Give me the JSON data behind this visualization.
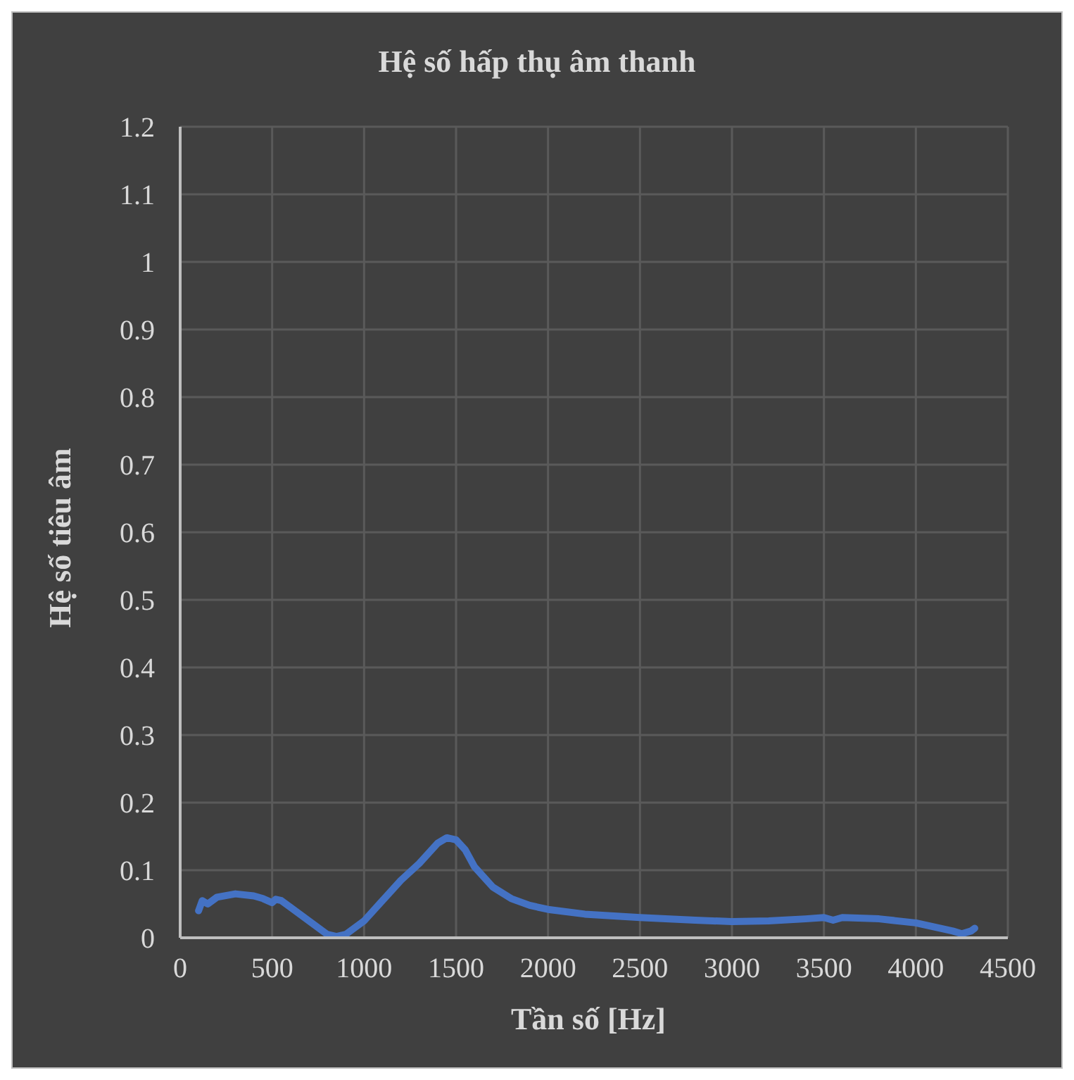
{
  "chart_data": {
    "type": "line",
    "title": "Hệ số hấp thụ âm thanh",
    "xlabel": "Tần số [Hz]",
    "ylabel": "Hệ số tiêu âm",
    "x": [
      100,
      120,
      150,
      200,
      300,
      400,
      450,
      500,
      520,
      550,
      600,
      700,
      800,
      850,
      900,
      1000,
      1100,
      1200,
      1300,
      1400,
      1450,
      1500,
      1550,
      1600,
      1700,
      1800,
      1900,
      2000,
      2200,
      2500,
      2800,
      3000,
      3200,
      3400,
      3500,
      3550,
      3600,
      3800,
      4000,
      4100,
      4200,
      4250,
      4300,
      4320
    ],
    "series": [
      {
        "color": "#4472c4",
        "values": [
          0.04,
          0.055,
          0.05,
          0.06,
          0.065,
          0.062,
          0.058,
          0.052,
          0.057,
          0.055,
          0.045,
          0.025,
          0.005,
          0.002,
          0.005,
          0.025,
          0.055,
          0.085,
          0.11,
          0.14,
          0.148,
          0.145,
          0.13,
          0.105,
          0.075,
          0.058,
          0.048,
          0.042,
          0.035,
          0.03,
          0.026,
          0.024,
          0.025,
          0.028,
          0.03,
          0.026,
          0.03,
          0.028,
          0.022,
          0.016,
          0.01,
          0.006,
          0.01,
          0.014
        ]
      }
    ],
    "xlim": [
      0,
      4500
    ],
    "xticks": [
      0,
      500,
      1000,
      1500,
      2000,
      2500,
      3000,
      3500,
      4000,
      4500
    ],
    "ylim": [
      0,
      1.2
    ],
    "yticks": [
      0,
      0.1,
      0.2,
      0.3,
      0.4,
      0.5,
      0.6,
      0.7,
      0.8,
      0.9,
      1,
      1.1,
      1.2
    ],
    "grid": true,
    "line_style": "solid"
  }
}
